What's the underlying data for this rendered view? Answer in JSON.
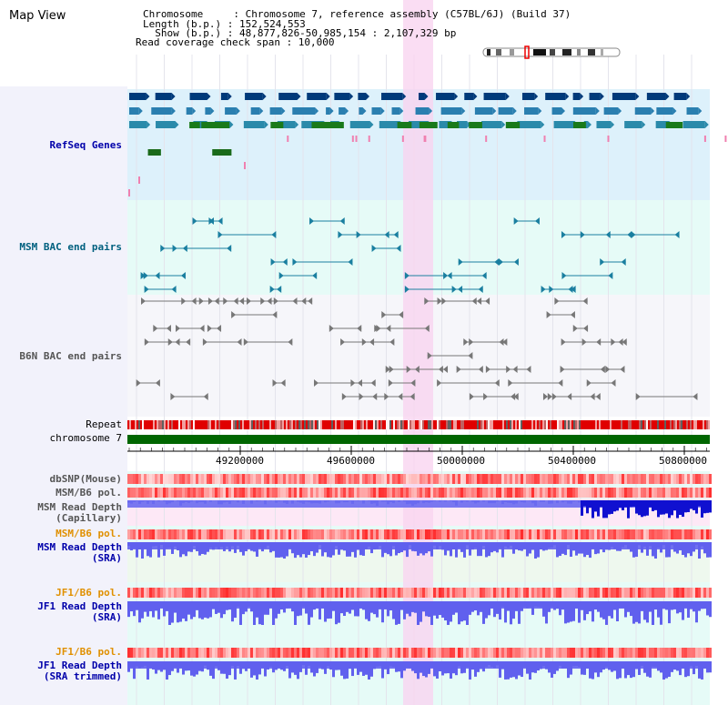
{
  "header": {
    "title": "Map View",
    "info_lines": [
      "Chromosome     : Chromosome 7, reference assembly (C57BL/6J) (Build 37)",
      "Length (b.p.) : 152,524,553",
      "  Show (b.p.) : 48,877,826-50,985,154 : 2,107,329 bp",
      "Read coverage check span : 10,000"
    ]
  },
  "tracks": {
    "refseq": "RefSeq Genes",
    "msm_bac": "MSM BAC end pairs",
    "b6n_bac": "B6N BAC end pairs",
    "repeat": "Repeat",
    "chromosome": "chromosome 7",
    "dbsnp": "dbSNP(Mouse)",
    "msm_b6_pol_1": "MSM/B6 pol.",
    "msm_depth_cap_1": "MSM Read Depth",
    "msm_depth_cap_2": "(Capillary)",
    "msm_b6_pol_2": "MSM/B6 pol.",
    "msm_depth_sra_1": "MSM Read Depth",
    "msm_depth_sra_2": "(SRA)",
    "jf1_b6_pol_1": "JF1/B6 pol.",
    "jf1_depth_sra_1": "JF1 Read Depth",
    "jf1_depth_sra_2": "(SRA)",
    "jf1_b6_pol_2": "JF1/B6 pol.",
    "jf1_depth_trim_1": "JF1 Read Depth",
    "jf1_depth_trim_2": "(SRA trimmed)"
  },
  "axis": {
    "ticks": [
      "49200000",
      "49600000",
      "50000000",
      "50400000",
      "50800000"
    ]
  },
  "colors": {
    "refseq_bg": "#ddf1fb",
    "bac_bg": "#e6fbf7",
    "highlight": "#f9d5f0",
    "label_blue": "#0000aa",
    "label_teal": "#00607f",
    "label_orange": "#e09000",
    "chromosome_bar": "#006600",
    "depth_blue": "#6060ee"
  }
}
